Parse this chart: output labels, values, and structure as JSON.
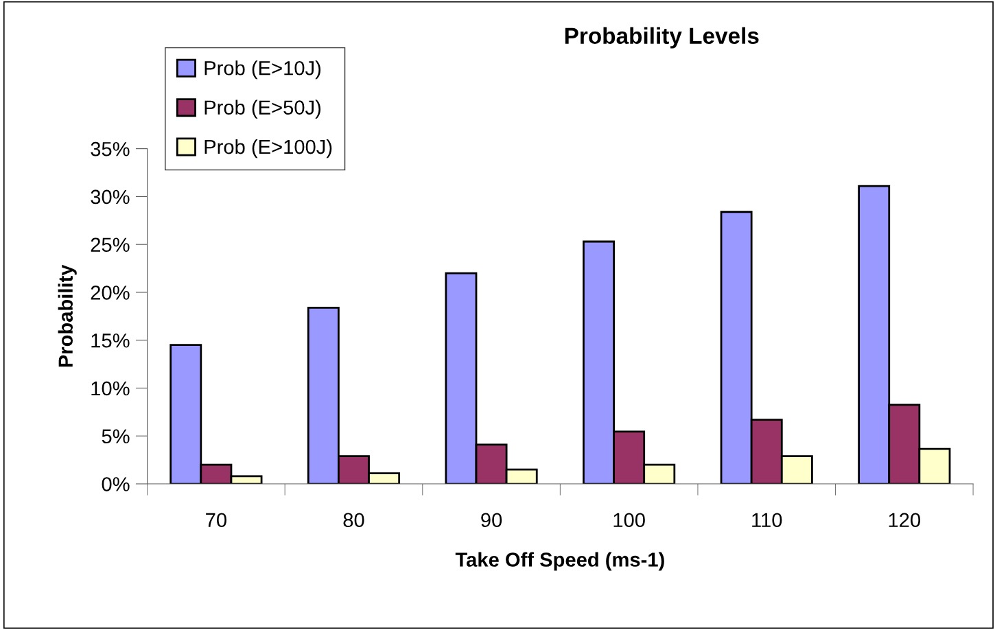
{
  "chart_data": {
    "type": "bar",
    "title": "Probability Levels",
    "xlabel": "Take Off Speed (ms-1)",
    "ylabel": "Probability",
    "categories": [
      "70",
      "80",
      "90",
      "100",
      "110",
      "120"
    ],
    "series": [
      {
        "name": "Prob (E>10J)",
        "color": "#9999ff",
        "values": [
          14.5,
          18.4,
          22.0,
          25.3,
          28.4,
          31.1
        ]
      },
      {
        "name": "Prob (E>50J)",
        "color": "#993366",
        "values": [
          2.0,
          2.9,
          4.1,
          5.45,
          6.7,
          8.25
        ]
      },
      {
        "name": "Prob (E>100J)",
        "color": "#ffffcc",
        "values": [
          0.8,
          1.1,
          1.5,
          2.0,
          2.9,
          3.65
        ]
      }
    ],
    "ylim": [
      0,
      35
    ],
    "yticks": [
      {
        "value": 0,
        "label": "0%"
      },
      {
        "value": 5,
        "label": "5%"
      },
      {
        "value": 10,
        "label": "10%"
      },
      {
        "value": 15,
        "label": "15%"
      },
      {
        "value": 20,
        "label": "20%"
      },
      {
        "value": 25,
        "label": "25%"
      },
      {
        "value": 30,
        "label": "30%"
      },
      {
        "value": 35,
        "label": "35%"
      }
    ],
    "grid": false,
    "legend": "top left"
  }
}
